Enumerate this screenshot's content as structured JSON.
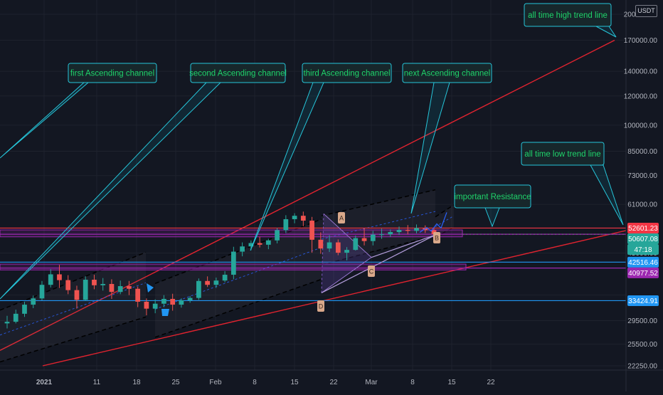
{
  "currency_badge": "USDT",
  "colors": {
    "background": "#131722",
    "candle_up": "#26a69a",
    "candle_down": "#ef5350",
    "resistance_line": "#f23645",
    "support_line": "#2196f3",
    "zone_line": "#9c27b0",
    "callout_border": "#26c6da",
    "callout_text": "#1fd36a",
    "trend_line": "#e0232f",
    "channel_line": "#000000",
    "tag_label": "#d9a88a"
  },
  "chart_data": {
    "type": "candlestick",
    "title": "",
    "price_scale": "log",
    "ylim": [
      22250,
      200000
    ],
    "x_tick_labels": [
      "2021",
      "11",
      "18",
      "25",
      "Feb",
      "8",
      "15",
      "22",
      "Mar",
      "8",
      "15",
      "22"
    ],
    "y_tick_labels": [
      "200000.00",
      "170000.00",
      "140000.00",
      "120000.00",
      "100000.00",
      "85000.00",
      "73000.00",
      "61000.00",
      "50607.08",
      "45000.00",
      "34600.00",
      "29500.00",
      "25500.00",
      "22250.00"
    ],
    "price_tags": [
      {
        "label": "52601.23",
        "value": 52601.23,
        "color": "#f23645"
      },
      {
        "label": "50607.08",
        "value": 50607.08,
        "color": "#26a69a"
      },
      {
        "label": "47:18",
        "value": 47500,
        "color": "#26a69a"
      },
      {
        "label": "42516.46",
        "value": 42516.46,
        "color": "#2196f3"
      },
      {
        "label": "40977.52",
        "value": 40977.52,
        "color": "#9c27b0"
      },
      {
        "label": "33424.91",
        "value": 33424.91,
        "color": "#2196f3"
      }
    ],
    "horizontal_levels": [
      {
        "value": 52601.23,
        "color": "#f23645"
      },
      {
        "value": 50607.08,
        "color": "#9c27b0"
      },
      {
        "value": 42516.46,
        "color": "#2196f3"
      },
      {
        "value": 40977.52,
        "color": "#9c27b0"
      },
      {
        "value": 33424.91,
        "color": "#2196f3"
      }
    ],
    "callouts": [
      {
        "text": "first Ascending channel"
      },
      {
        "text": "second Ascending channel"
      },
      {
        "text": "third Ascending channel"
      },
      {
        "text": "next Ascending channel"
      },
      {
        "text": "all time high trend line"
      },
      {
        "text": "all time low trend line"
      },
      {
        "text": "important Resistance"
      }
    ],
    "pattern_points": [
      "A",
      "B",
      "C",
      "D"
    ],
    "candles": [
      [
        29000,
        30400,
        28100,
        29300
      ],
      [
        29300,
        31600,
        29000,
        30800
      ],
      [
        30800,
        33200,
        30200,
        32600
      ],
      [
        32600,
        34500,
        31900,
        33900
      ],
      [
        33900,
        37800,
        33500,
        36900
      ],
      [
        36900,
        40700,
        36300,
        39400
      ],
      [
        39400,
        41800,
        36200,
        38000
      ],
      [
        38000,
        39200,
        34800,
        35700
      ],
      [
        35700,
        36700,
        31800,
        33600
      ],
      [
        33600,
        38900,
        33400,
        38100
      ],
      [
        38100,
        39300,
        35900,
        36800
      ],
      [
        36800,
        38500,
        35600,
        37100
      ],
      [
        37100,
        38200,
        33800,
        35300
      ],
      [
        35300,
        37900,
        34800,
        36600
      ],
      [
        36600,
        37800,
        34600,
        36000
      ],
      [
        36000,
        36500,
        32100,
        33200
      ],
      [
        33200,
        33900,
        30500,
        31800
      ],
      [
        31800,
        33700,
        30900,
        32800
      ],
      [
        32800,
        34600,
        32100,
        33800
      ],
      [
        33800,
        34900,
        31400,
        32600
      ],
      [
        32600,
        33900,
        32000,
        33500
      ],
      [
        33500,
        34400,
        33000,
        34000
      ],
      [
        34000,
        38400,
        33600,
        37800
      ],
      [
        37800,
        38900,
        36400,
        36900
      ],
      [
        36900,
        38600,
        36200,
        37900
      ],
      [
        37900,
        40200,
        37500,
        39300
      ],
      [
        39300,
        46800,
        38200,
        45400
      ],
      [
        45400,
        48100,
        44100,
        46900
      ],
      [
        46900,
        48700,
        45800,
        47900
      ],
      [
        47900,
        49800,
        46600,
        47400
      ],
      [
        47400,
        49200,
        46100,
        48700
      ],
      [
        48700,
        52600,
        47800,
        51900
      ],
      [
        51900,
        57000,
        51000,
        55600
      ],
      [
        55600,
        57700,
        54200,
        56800
      ],
      [
        56800,
        58300,
        53200,
        55100
      ],
      [
        55100,
        56400,
        45100,
        48900
      ],
      [
        48900,
        51200,
        44800,
        46300
      ],
      [
        46300,
        50300,
        45300,
        48100
      ],
      [
        48100,
        49000,
        44400,
        45100
      ],
      [
        45100,
        46700,
        43000,
        45900
      ],
      [
        45900,
        50200,
        45700,
        49400
      ],
      [
        49400,
        52500,
        47200,
        48500
      ],
      [
        48500,
        51700,
        47200,
        50500
      ],
      [
        50500,
        52400,
        49200,
        50600
      ],
      [
        50600,
        52200,
        49800,
        51300
      ],
      [
        51300,
        53100,
        50400,
        52000
      ],
      [
        52000,
        53600,
        50600,
        51700
      ],
      [
        51700,
        53800,
        50900,
        52600
      ],
      [
        52600,
        53500,
        51000,
        51900
      ],
      [
        51900,
        52900,
        49900,
        50607
      ]
    ]
  }
}
